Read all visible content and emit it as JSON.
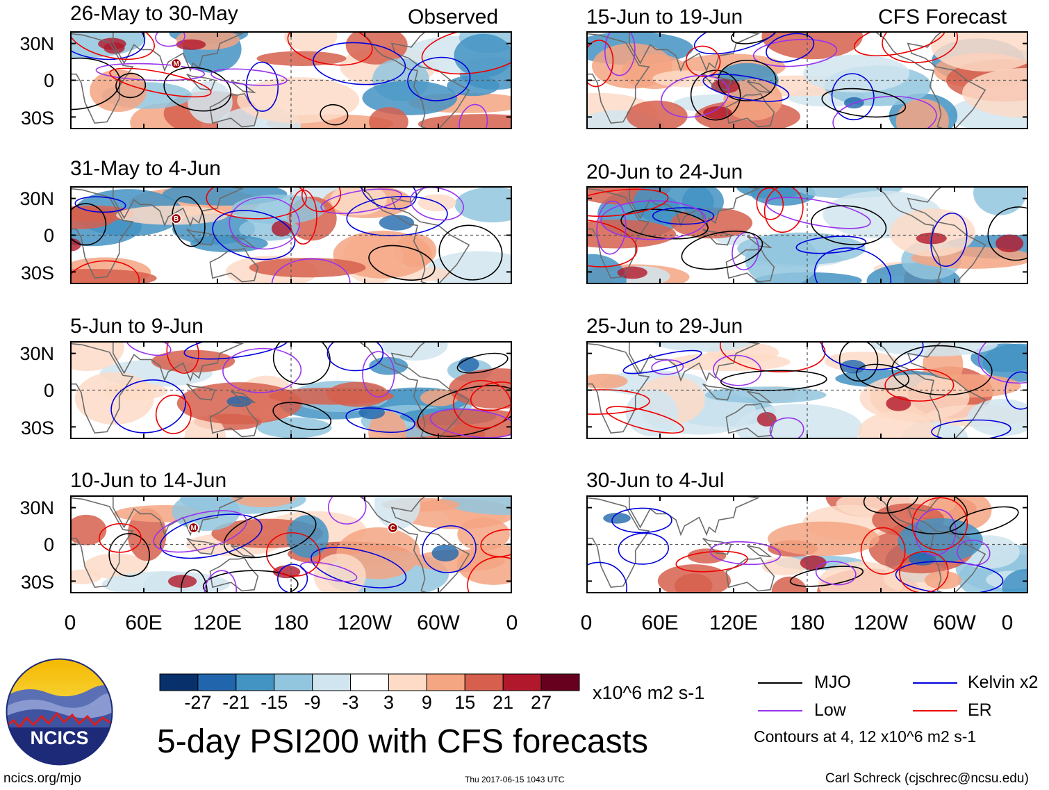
{
  "columns": {
    "left_label": "Observed",
    "right_label": "CFS Forecast"
  },
  "panels": [
    {
      "title": "26-May to 30-May",
      "type": "Observed",
      "markers": [
        "M"
      ],
      "seed": 3
    },
    {
      "title": "31-May to 4-Jun",
      "type": "Observed",
      "markers": [
        "B"
      ],
      "seed": 7
    },
    {
      "title": "5-Jun to 9-Jun",
      "type": "Observed",
      "markers": [],
      "seed": 11
    },
    {
      "title": "10-Jun to 14-Jun",
      "type": "Observed",
      "markers": [
        "M",
        "C"
      ],
      "seed": 17
    },
    {
      "title": "15-Jun to 19-Jun",
      "type": "CFS Forecast",
      "markers": [],
      "seed": 23
    },
    {
      "title": "20-Jun to 24-Jun",
      "type": "CFS Forecast",
      "markers": [],
      "seed": 29
    },
    {
      "title": "25-Jun to 29-Jun",
      "type": "CFS Forecast",
      "markers": [],
      "seed": 31
    },
    {
      "title": "30-Jun to 4-Jul",
      "type": "CFS Forecast",
      "markers": [],
      "seed": 37
    }
  ],
  "axes": {
    "y_labels": [
      "30N",
      "0",
      "30S"
    ],
    "x_labels": [
      "0",
      "60E",
      "120E",
      "180",
      "120W",
      "60W",
      "0"
    ]
  },
  "colorbar": {
    "ticks": [
      "-27",
      "-21",
      "-15",
      "-9",
      "-3",
      "3",
      "9",
      "15",
      "21",
      "27"
    ],
    "units": "x10^6 m2 s-1",
    "colors": [
      "#08306b",
      "#2166ac",
      "#4393c3",
      "#92c5de",
      "#d1e5f0",
      "#ffffff",
      "#fddbc7",
      "#f4a582",
      "#d6604d",
      "#b2182b",
      "#67001f"
    ]
  },
  "legend": {
    "mjo": "MJO",
    "kelvin": "Kelvin x2",
    "low": "Low",
    "er": "ER",
    "contours_note": "Contours at 4, 12 x10^6 m2 s-1",
    "colors": {
      "mjo": "#000000",
      "kelvin": "#0000dd",
      "low": "#9933ee",
      "er": "#ee0000"
    }
  },
  "logo": {
    "text": "NCICS"
  },
  "title": "5-day PSI200 with CFS forecasts",
  "footer": {
    "left": "ncics.org/mjo",
    "center": "Thu 2017-06-15 1043 UTC",
    "right": "Carl Schreck (cjschrec@ncsu.edu)"
  }
}
